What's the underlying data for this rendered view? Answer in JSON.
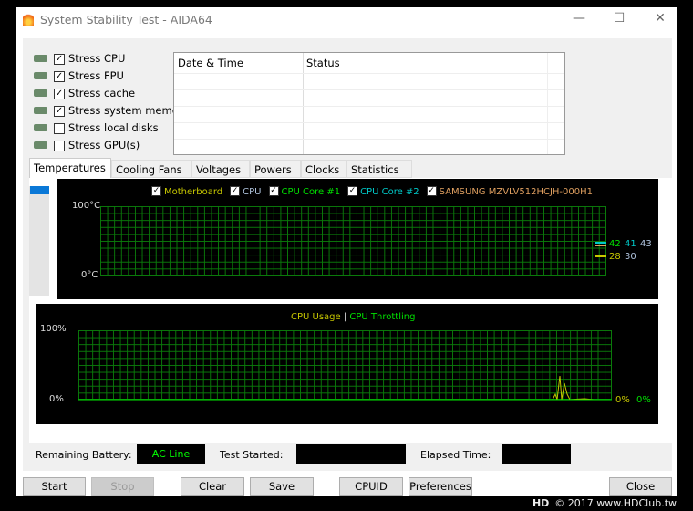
{
  "window": {
    "title": "System Stability Test - AIDA64",
    "controls": [
      "minimize",
      "maximize",
      "close"
    ]
  },
  "stress_options": [
    {
      "label": "Stress CPU",
      "checked": true,
      "icon": "cpu-icon"
    },
    {
      "label": "Stress FPU",
      "checked": true,
      "icon": "fpu-icon"
    },
    {
      "label": "Stress cache",
      "checked": true,
      "icon": "cache-icon"
    },
    {
      "label": "Stress system memory",
      "checked": true,
      "icon": "memory-icon"
    },
    {
      "label": "Stress local disks",
      "checked": false,
      "icon": "disk-icon"
    },
    {
      "label": "Stress GPU(s)",
      "checked": false,
      "icon": "gpu-icon"
    }
  ],
  "log": {
    "columns": [
      "Date & Time",
      "Status"
    ],
    "rows": []
  },
  "tabs": [
    "Temperatures",
    "Cooling Fans",
    "Voltages",
    "Powers",
    "Clocks",
    "Statistics"
  ],
  "active_tab": "Temperatures",
  "temp_chart": {
    "legend": [
      {
        "name": "Motherboard",
        "color": "#c8c800"
      },
      {
        "name": "CPU",
        "color": "#b0c4de"
      },
      {
        "name": "CPU Core #1",
        "color": "#00e000"
      },
      {
        "name": "CPU Core #2",
        "color": "#00c8c8"
      },
      {
        "name": "SAMSUNG MZVLV512HCJH-000H1",
        "color": "#e0a060"
      }
    ],
    "y_max": "100°C",
    "y_min": "0°C",
    "values": [
      {
        "text": "42",
        "color": "#00e000"
      },
      {
        "text": "41",
        "color": "#00c8c8"
      },
      {
        "text": "43",
        "color": "#b0c4de"
      },
      {
        "text": "28",
        "color": "#c8c800"
      },
      {
        "text": "30",
        "color": "#b0c4de"
      }
    ]
  },
  "usage_chart": {
    "legend": [
      {
        "name": "CPU Usage",
        "color": "#c8c800"
      },
      {
        "name": "CPU Throttling",
        "color": "#00e000"
      }
    ],
    "separator": "|",
    "y_max": "100%",
    "y_min": "0%",
    "values": [
      {
        "text": "0%",
        "color": "#c8c800"
      },
      {
        "text": "0%",
        "color": "#00e000"
      }
    ]
  },
  "status": {
    "battery_label": "Remaining Battery:",
    "battery_value": "AC Line",
    "started_label": "Test Started:",
    "started_value": "",
    "elapsed_label": "Elapsed Time:",
    "elapsed_value": ""
  },
  "buttons": {
    "start": "Start",
    "stop": "Stop",
    "clear": "Clear",
    "save": "Save",
    "cpuid": "CPUID",
    "preferences": "Preferences",
    "close": "Close"
  },
  "watermark": "© 2017 www.HDClub.tw"
}
